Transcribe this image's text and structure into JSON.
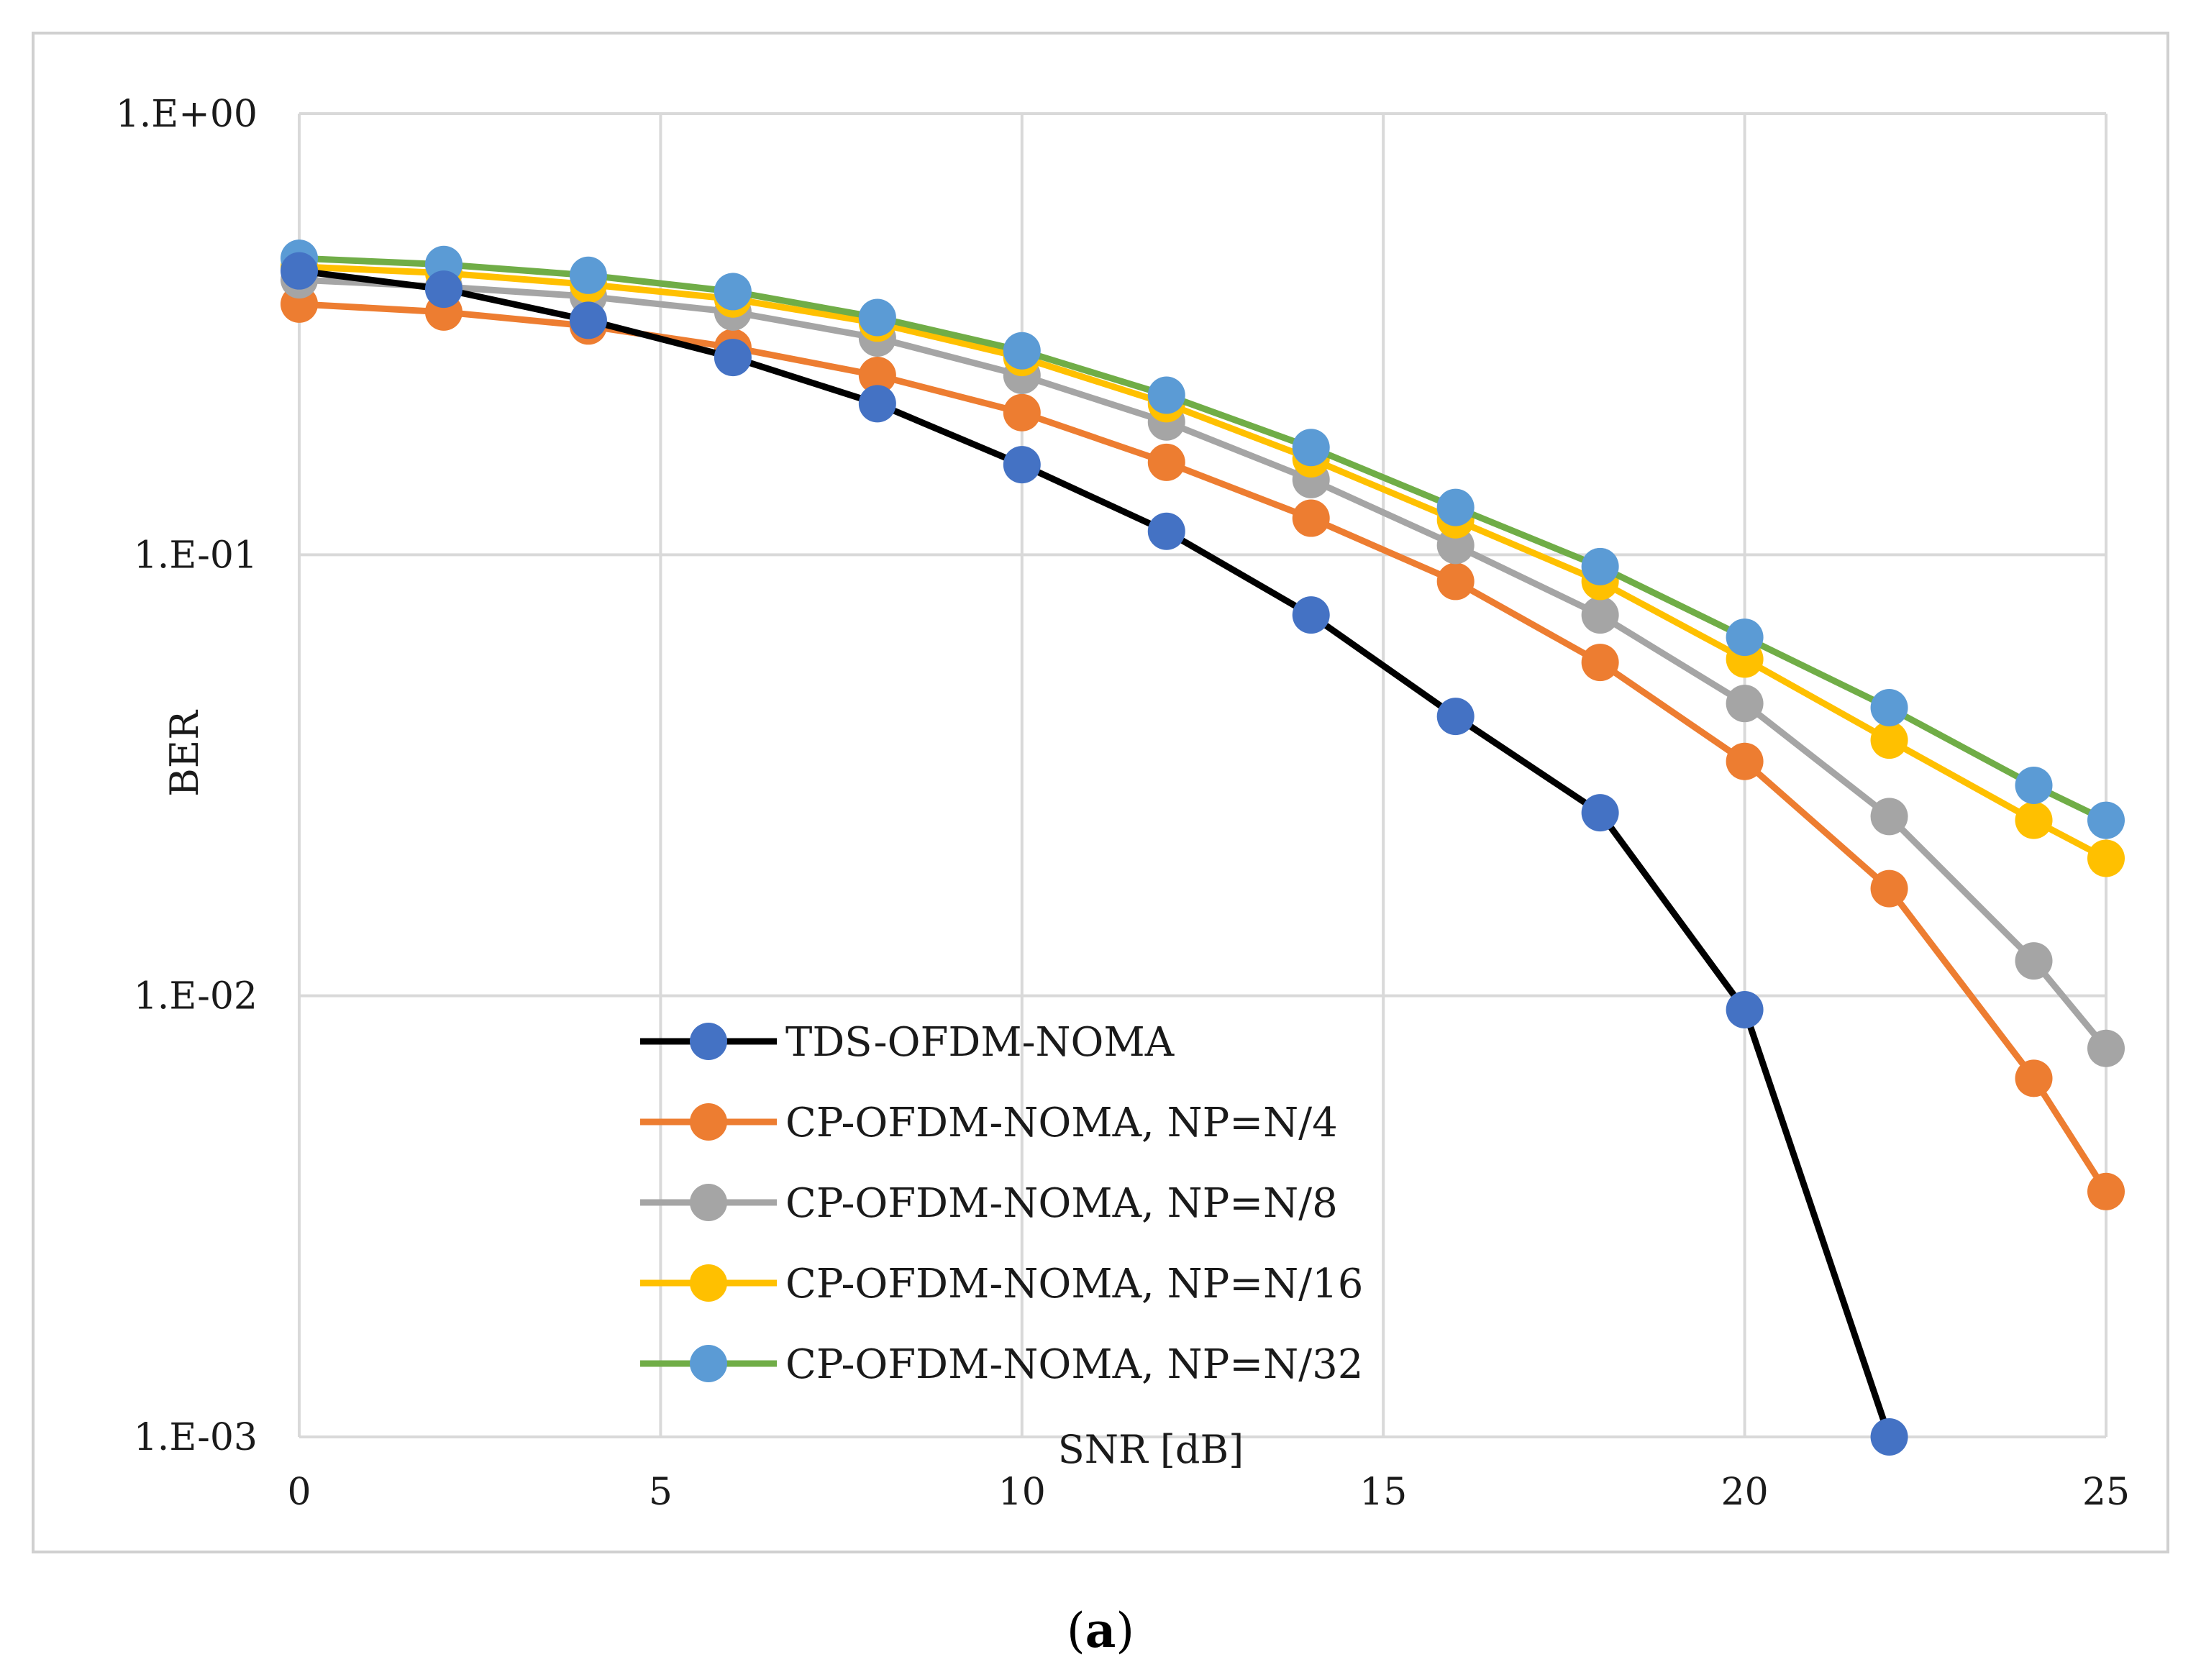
{
  "chart_data": {
    "type": "line",
    "title": "",
    "xlabel": "SNR [dB]",
    "ylabel": "BER",
    "yscale": "log",
    "xlim": [
      0,
      25
    ],
    "ylim": [
      0.001,
      1
    ],
    "grid": true,
    "legend_position": "bottom-center",
    "x_ticks": [
      "0",
      "5",
      "10",
      "15",
      "20",
      "25"
    ],
    "y_ticks": [
      "1.E+00",
      "1.E-01",
      "1.E-02",
      "1.E-03"
    ],
    "x": [
      0,
      2,
      4,
      6,
      8,
      10,
      12,
      14,
      16,
      18,
      20,
      22,
      24,
      25
    ],
    "series": [
      {
        "name": "TDS-OFDM-NOMA",
        "line_color": "#000000",
        "marker_color": "#4472c4",
        "values": [
          0.44,
          0.4,
          0.34,
          0.28,
          0.22,
          0.16,
          0.113,
          0.073,
          0.043,
          0.026,
          0.0093,
          0.001,
          null,
          null
        ]
      },
      {
        "name": "CP-OFDM-NOMA, NP=N/4",
        "line_color": "#ed7d31",
        "marker_color": "#ed7d31",
        "values": [
          0.37,
          0.355,
          0.33,
          0.295,
          0.255,
          0.21,
          0.162,
          0.121,
          0.087,
          0.057,
          0.034,
          0.0175,
          0.0065,
          0.0036
        ]
      },
      {
        "name": "CP-OFDM-NOMA, NP=N/8",
        "line_color": "#a5a5a5",
        "marker_color": "#a5a5a5",
        "values": [
          0.42,
          0.405,
          0.385,
          0.355,
          0.31,
          0.255,
          0.2,
          0.148,
          0.105,
          0.073,
          0.046,
          0.0255,
          0.012,
          0.0076
        ]
      },
      {
        "name": "CP-OFDM-NOMA, NP=N/16",
        "line_color": "#ffc000",
        "marker_color": "#ffc000",
        "values": [
          0.45,
          0.435,
          0.41,
          0.38,
          0.335,
          0.28,
          0.22,
          0.165,
          0.12,
          0.087,
          0.058,
          0.038,
          0.025,
          0.0205
        ]
      },
      {
        "name": "CP-OFDM-NOMA, NP=N/32",
        "line_color": "#70ad47",
        "marker_color": "#5b9bd5",
        "values": [
          0.47,
          0.455,
          0.43,
          0.395,
          0.345,
          0.29,
          0.23,
          0.175,
          0.128,
          0.094,
          0.065,
          0.045,
          0.03,
          0.025
        ]
      }
    ]
  },
  "caption": {
    "open": "(",
    "letter": "a",
    "close": ")"
  }
}
